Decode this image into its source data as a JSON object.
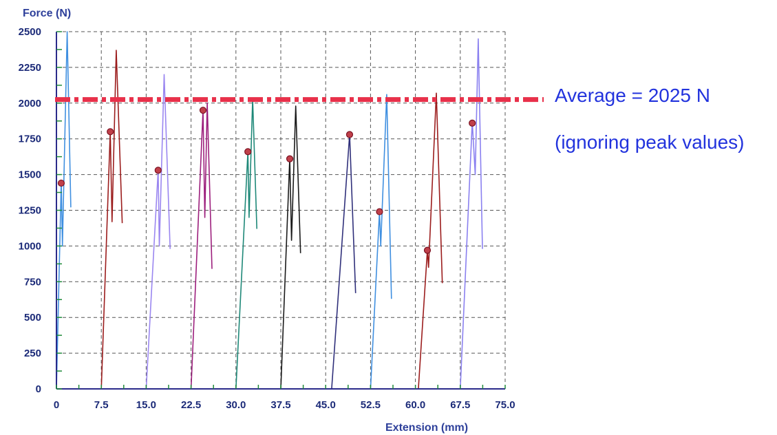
{
  "chart_data": {
    "type": "line",
    "xlabel": "Extension (mm)",
    "ylabel": "Force (N)",
    "xlim": [
      0,
      75
    ],
    "ylim": [
      0,
      2500
    ],
    "x_ticks": [
      "0",
      "7.5",
      "15.0",
      "22.5",
      "30.0",
      "37.5",
      "45.0",
      "52.5",
      "60.0",
      "67.5",
      "75.0"
    ],
    "y_ticks": [
      "0",
      "250",
      "500",
      "750",
      "1000",
      "1250",
      "1500",
      "1750",
      "2000",
      "2250",
      "2500"
    ],
    "grid": true,
    "series": [
      {
        "color": "#3f8fe0",
        "points": [
          [
            0,
            0
          ],
          [
            0.8,
            1450
          ],
          [
            1,
            1000
          ],
          [
            1.8,
            2500
          ],
          [
            2.4,
            1270
          ]
        ],
        "marker": [
          0.8,
          1440
        ]
      },
      {
        "color": "#9b1c1c",
        "points": [
          [
            7.5,
            0
          ],
          [
            9,
            1800
          ],
          [
            9.3,
            1170
          ],
          [
            10,
            2370
          ],
          [
            11,
            1160
          ]
        ],
        "marker": [
          9,
          1800
        ]
      },
      {
        "color": "#9a86f0",
        "points": [
          [
            15,
            0
          ],
          [
            17,
            1530
          ],
          [
            17.2,
            1000
          ],
          [
            18,
            2200
          ],
          [
            19,
            980
          ]
        ],
        "marker": [
          17,
          1530
        ]
      },
      {
        "color": "#9c1e7c",
        "points": [
          [
            22.5,
            0
          ],
          [
            24.5,
            1950
          ],
          [
            24.8,
            1200
          ],
          [
            25.2,
            2000
          ],
          [
            26,
            840
          ]
        ],
        "marker": [
          24.5,
          1950
        ]
      },
      {
        "color": "#1e8878",
        "points": [
          [
            30,
            0
          ],
          [
            32,
            1660
          ],
          [
            32.2,
            1200
          ],
          [
            32.8,
            2030
          ],
          [
            33.5,
            1120
          ]
        ],
        "marker": [
          32,
          1660
        ]
      },
      {
        "color": "#1a1a1a",
        "points": [
          [
            37.5,
            0
          ],
          [
            39,
            1610
          ],
          [
            39.3,
            1040
          ],
          [
            40,
            1980
          ],
          [
            40.8,
            950
          ]
        ],
        "marker": [
          39,
          1610
        ]
      },
      {
        "color": "#2f2f7a",
        "points": [
          [
            46,
            0
          ],
          [
            49,
            1780
          ],
          [
            50,
            670
          ]
        ],
        "marker": [
          49,
          1780
        ]
      },
      {
        "color": "#3f8fe0",
        "points": [
          [
            52.5,
            0
          ],
          [
            54,
            1240
          ],
          [
            54.2,
            1000
          ],
          [
            55.2,
            2060
          ],
          [
            56,
            630
          ]
        ],
        "marker": [
          54,
          1240
        ]
      },
      {
        "color": "#9b1c1c",
        "points": [
          [
            60.5,
            0
          ],
          [
            62,
            970
          ],
          [
            62.2,
            850
          ],
          [
            63.5,
            2070
          ],
          [
            64.5,
            740
          ]
        ],
        "marker": [
          62,
          970
        ]
      },
      {
        "color": "#8a80f0",
        "points": [
          [
            67.5,
            0
          ],
          [
            69.5,
            1870
          ],
          [
            70,
            1500
          ],
          [
            70.5,
            2450
          ],
          [
            71.2,
            980
          ]
        ],
        "marker": [
          69.5,
          1860
        ]
      }
    ],
    "average_line": {
      "value": 2025,
      "color": "#e8304a"
    },
    "annotations": [
      "Average = 2025 N",
      "(ignoring peak values)"
    ]
  }
}
